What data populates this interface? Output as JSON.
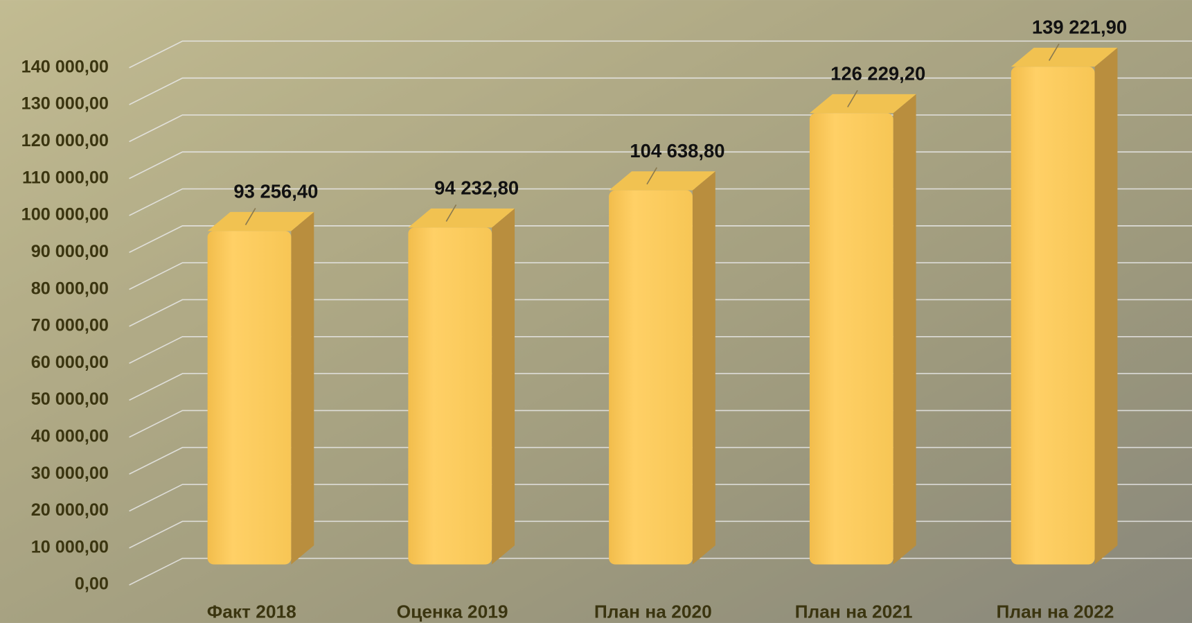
{
  "chart_data": {
    "type": "bar3d",
    "categories": [
      "Факт 2018",
      "Оценка 2019",
      "План на 2020",
      "План на 2021",
      "План на 2022"
    ],
    "values": [
      93256.4,
      94232.8,
      104638.8,
      126229.2,
      139221.9
    ],
    "value_labels": [
      "93 256,40",
      "94 232,80",
      "104 638,80",
      "126 229,20",
      "139 221,90"
    ],
    "color": "#fecb5a",
    "ylim": [
      0,
      140000
    ],
    "yticks": [
      {
        "value": 0,
        "label": "0,00"
      },
      {
        "value": 10000,
        "label": "10 000,00"
      },
      {
        "value": 20000,
        "label": "20 000,00"
      },
      {
        "value": 30000,
        "label": "30 000,00"
      },
      {
        "value": 40000,
        "label": "40 000,00"
      },
      {
        "value": 50000,
        "label": "50 000,00"
      },
      {
        "value": 60000,
        "label": "60 000,00"
      },
      {
        "value": 70000,
        "label": "70 000,00"
      },
      {
        "value": 80000,
        "label": "80 000,00"
      },
      {
        "value": 90000,
        "label": "90 000,00"
      },
      {
        "value": 100000,
        "label": "100 000,00"
      },
      {
        "value": 110000,
        "label": "110 000,00"
      },
      {
        "value": 120000,
        "label": "120 000,00"
      },
      {
        "value": 130000,
        "label": "130 000,00"
      },
      {
        "value": 140000,
        "label": "140 000,00"
      }
    ],
    "grid": true
  }
}
